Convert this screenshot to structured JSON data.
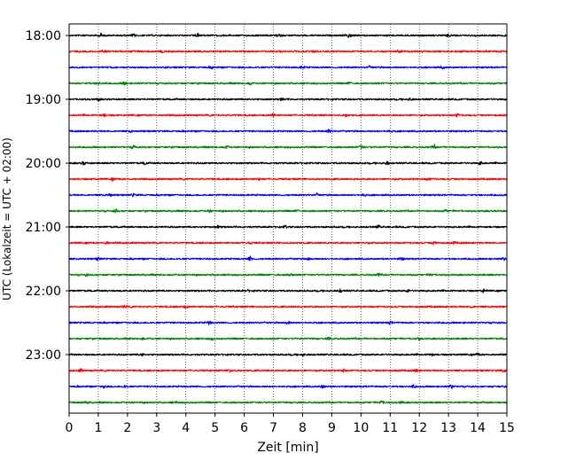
{
  "chart_data": {
    "type": "line",
    "title": "",
    "xlabel": "Zeit  [min]",
    "ylabel": "UTC (Lokalzeit = UTC + 02:00)",
    "xlim": [
      0,
      15
    ],
    "x_ticks": [
      0,
      1,
      2,
      3,
      4,
      5,
      6,
      7,
      8,
      9,
      10,
      11,
      12,
      13,
      14,
      15
    ],
    "x_tick_labels": [
      "0",
      "1",
      "2",
      "3",
      "4",
      "5",
      "6",
      "7",
      "8",
      "9",
      "10",
      "11",
      "12",
      "13",
      "14",
      "15"
    ],
    "y_tick_labels": [
      "18:00",
      "19:00",
      "20:00",
      "21:00",
      "22:00",
      "23:00"
    ],
    "y_tick_rows": [
      0,
      4,
      8,
      12,
      16,
      20
    ],
    "trace_count": 24,
    "trace_interval_min": 15,
    "start_time": "18:00",
    "end_time": "23:45",
    "trace_colors": [
      "#000000",
      "#ff0000",
      "#0000ff",
      "#008000"
    ],
    "vertical_grid": "dotted",
    "legend": "none",
    "events": [
      [
        [
          1.1,
          0.9
        ],
        [
          4.4,
          0.8
        ],
        [
          9.6,
          0.7
        ],
        [
          2.2,
          0.5
        ],
        [
          7.2,
          0.5
        ],
        [
          13.0,
          0.5
        ]
      ],
      [
        [
          1.2,
          0.5
        ],
        [
          3.2,
          0.4
        ],
        [
          8.4,
          0.4
        ],
        [
          11.3,
          0.4
        ]
      ],
      [
        [
          4.9,
          0.5
        ],
        [
          8.0,
          0.5
        ],
        [
          10.3,
          0.5
        ],
        [
          12.8,
          0.4
        ]
      ],
      [
        [
          1.0,
          0.6
        ],
        [
          1.9,
          0.9
        ],
        [
          6.2,
          0.5
        ],
        [
          9.6,
          0.5
        ]
      ],
      [
        [
          1.0,
          0.5
        ],
        [
          7.3,
          0.6
        ],
        [
          11.7,
          0.5
        ]
      ],
      [
        [
          1.2,
          0.5
        ],
        [
          7.0,
          0.7
        ],
        [
          9.5,
          0.5
        ],
        [
          13.3,
          0.5
        ]
      ],
      [
        [
          8.9,
          0.5
        ],
        [
          2.1,
          0.4
        ],
        [
          11.0,
          0.4
        ]
      ],
      [
        [
          2.2,
          0.6
        ],
        [
          5.4,
          0.5
        ],
        [
          10.0,
          0.8
        ],
        [
          12.5,
          0.8
        ]
      ],
      [
        [
          0.5,
          0.6
        ],
        [
          2.6,
          0.5
        ],
        [
          10.9,
          0.6
        ],
        [
          14.1,
          0.6
        ]
      ],
      [
        [
          1.5,
          0.4
        ],
        [
          6.5,
          0.4
        ],
        [
          12.3,
          0.5
        ]
      ],
      [
        [
          1.4,
          0.6
        ],
        [
          2.2,
          0.5
        ],
        [
          8.5,
          0.6
        ],
        [
          10.1,
          0.5
        ]
      ],
      [
        [
          1.6,
          0.7
        ],
        [
          4.8,
          0.5
        ],
        [
          7.8,
          0.4
        ],
        [
          12.9,
          0.4
        ]
      ],
      [
        [
          5.1,
          0.5
        ],
        [
          7.4,
          0.5
        ],
        [
          10.6,
          0.6
        ]
      ],
      [
        [
          1.3,
          0.5
        ],
        [
          6.2,
          0.4
        ],
        [
          12.5,
          0.6
        ],
        [
          13.2,
          0.4
        ]
      ],
      [
        [
          1.0,
          0.5
        ],
        [
          6.2,
          1.0
        ],
        [
          8.2,
          0.5
        ],
        [
          11.4,
          0.5
        ],
        [
          14.9,
          0.5
        ]
      ],
      [
        [
          0.6,
          0.4
        ],
        [
          7.6,
          0.5
        ],
        [
          10.6,
          0.5
        ],
        [
          12.4,
          0.5
        ]
      ],
      [
        [
          6.1,
          0.5
        ],
        [
          9.3,
          0.5
        ],
        [
          11.6,
          0.5
        ],
        [
          14.2,
          0.6
        ]
      ],
      [
        [
          1.9,
          0.6
        ],
        [
          4.0,
          0.4
        ],
        [
          13.8,
          0.4
        ]
      ],
      [
        [
          4.8,
          0.7
        ],
        [
          7.5,
          0.8
        ],
        [
          11.0,
          0.5
        ]
      ],
      [
        [
          2.5,
          0.5
        ],
        [
          4.9,
          0.5
        ],
        [
          8.9,
          0.4
        ],
        [
          12.0,
          0.4
        ]
      ],
      [
        [
          2.5,
          0.4
        ],
        [
          8.0,
          0.5
        ],
        [
          12.4,
          0.6
        ],
        [
          14.0,
          0.5
        ]
      ],
      [
        [
          0.4,
          0.6
        ],
        [
          5.5,
          0.5
        ],
        [
          9.4,
          0.5
        ],
        [
          11.9,
          0.6
        ],
        [
          14.9,
          0.6
        ]
      ],
      [
        [
          1.2,
          0.7
        ],
        [
          1.9,
          0.6
        ],
        [
          8.7,
          0.7
        ],
        [
          11.8,
          0.5
        ],
        [
          13.1,
          0.8
        ]
      ],
      [
        [
          0.6,
          0.4
        ],
        [
          3.7,
          0.4
        ],
        [
          10.7,
          0.7
        ],
        [
          11.4,
          0.5
        ]
      ]
    ]
  }
}
